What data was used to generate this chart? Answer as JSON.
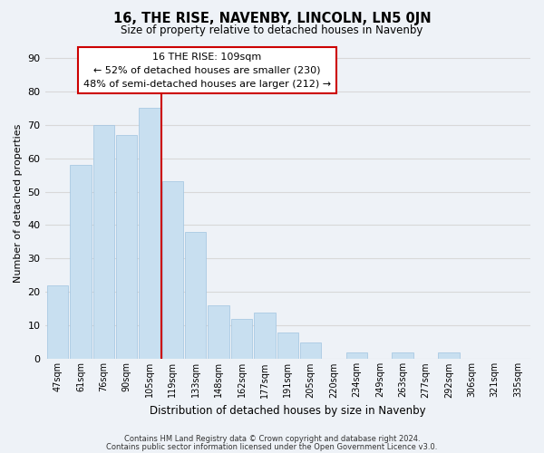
{
  "title": "16, THE RISE, NAVENBY, LINCOLN, LN5 0JN",
  "subtitle": "Size of property relative to detached houses in Navenby",
  "xlabel": "Distribution of detached houses by size in Navenby",
  "ylabel": "Number of detached properties",
  "bar_labels": [
    "47sqm",
    "61sqm",
    "76sqm",
    "90sqm",
    "105sqm",
    "119sqm",
    "133sqm",
    "148sqm",
    "162sqm",
    "177sqm",
    "191sqm",
    "205sqm",
    "220sqm",
    "234sqm",
    "249sqm",
    "263sqm",
    "277sqm",
    "292sqm",
    "306sqm",
    "321sqm",
    "335sqm"
  ],
  "bar_values": [
    22,
    58,
    70,
    67,
    75,
    53,
    38,
    16,
    12,
    14,
    8,
    5,
    0,
    2,
    0,
    2,
    0,
    2,
    0,
    0,
    0
  ],
  "bar_color": "#c8dff0",
  "bar_edge_color": "#a0c4e0",
  "grid_color": "#d8d8d8",
  "vline_x": 4.5,
  "vline_color": "#cc0000",
  "annotation_text_line1": "16 THE RISE: 109sqm",
  "annotation_text_line2": "← 52% of detached houses are smaller (230)",
  "annotation_text_line3": "48% of semi-detached houses are larger (212) →",
  "annotation_box_color": "#ffffff",
  "annotation_box_edge": "#cc0000",
  "ylim": [
    0,
    93
  ],
  "yticks": [
    0,
    10,
    20,
    30,
    40,
    50,
    60,
    70,
    80,
    90
  ],
  "footer1": "Contains HM Land Registry data © Crown copyright and database right 2024.",
  "footer2": "Contains public sector information licensed under the Open Government Licence v3.0.",
  "background_color": "#eef2f7",
  "plot_bg_color": "#eef2f7"
}
